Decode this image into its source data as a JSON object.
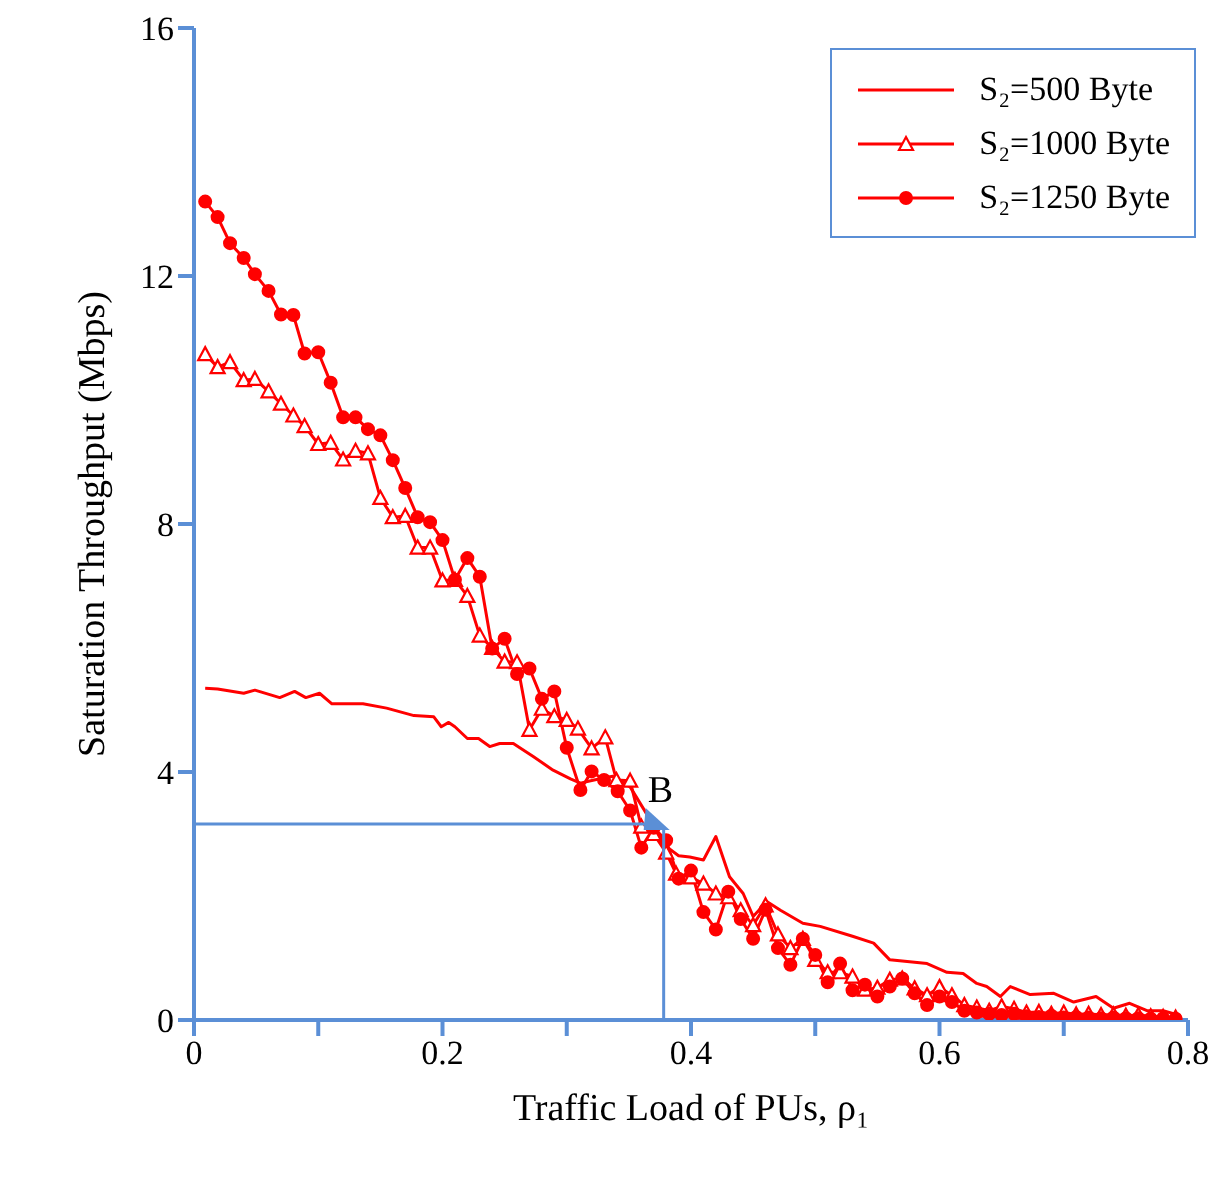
{
  "chart_data": {
    "type": "line",
    "xlabel": "Traffic Load of PUs, ρ₁",
    "ylabel": "Saturation Throughput (Mbps)",
    "xlim": [
      0,
      0.8
    ],
    "ylim": [
      0,
      16
    ],
    "xticks": [
      0,
      {
        "value": 0.1,
        "label": null
      },
      0.2,
      {
        "value": 0.3,
        "label": null
      },
      0.4,
      {
        "value": 0.5,
        "label": null
      },
      0.6,
      {
        "value": 0.7,
        "label": null
      },
      0.8
    ],
    "yticks": [
      0,
      4,
      8,
      12,
      16
    ],
    "legend": "top right",
    "annotations": [
      {
        "text": "B",
        "x": 0.378,
        "y": 3.16
      }
    ],
    "series": [
      {
        "name": "S₂=500 Byte",
        "color": "#ff0000",
        "marker": "none",
        "x": [
          0.009,
          0.019,
          0.04,
          0.049,
          0.069,
          0.081,
          0.09,
          0.101,
          0.111,
          0.136,
          0.155,
          0.177,
          0.193,
          0.199,
          0.205,
          0.21,
          0.22,
          0.229,
          0.238,
          0.246,
          0.257,
          0.273,
          0.289,
          0.303,
          0.311,
          0.322,
          0.337,
          0.351,
          0.365,
          0.38,
          0.39,
          0.399,
          0.41,
          0.42,
          0.431,
          0.442,
          0.45,
          0.461,
          0.472,
          0.49,
          0.504,
          0.53,
          0.547,
          0.56,
          0.59,
          0.606,
          0.619,
          0.63,
          0.638,
          0.649,
          0.657,
          0.673,
          0.692,
          0.708,
          0.726,
          0.74,
          0.753,
          0.767,
          0.78,
          0.794
        ],
        "values": [
          5.35,
          5.34,
          5.27,
          5.32,
          5.2,
          5.3,
          5.2,
          5.27,
          5.1,
          5.1,
          5.03,
          4.91,
          4.89,
          4.73,
          4.8,
          4.73,
          4.54,
          4.54,
          4.41,
          4.46,
          4.46,
          4.25,
          4.03,
          3.89,
          3.82,
          3.87,
          3.93,
          3.76,
          3.3,
          2.8,
          2.65,
          2.63,
          2.58,
          2.96,
          2.31,
          2.04,
          1.67,
          1.91,
          1.77,
          1.56,
          1.51,
          1.35,
          1.24,
          0.97,
          0.91,
          0.77,
          0.75,
          0.59,
          0.54,
          0.38,
          0.54,
          0.41,
          0.43,
          0.29,
          0.38,
          0.19,
          0.27,
          0.15,
          0.15,
          0.07
        ]
      },
      {
        "name": "S₂=1000 Byte",
        "color": "#ff0000",
        "marker": "triangle",
        "x": [
          0.009,
          0.019,
          0.029,
          0.04,
          0.049,
          0.06,
          0.07,
          0.08,
          0.089,
          0.1,
          0.11,
          0.12,
          0.13,
          0.14,
          0.15,
          0.16,
          0.17,
          0.18,
          0.19,
          0.2,
          0.21,
          0.22,
          0.23,
          0.24,
          0.25,
          0.26,
          0.27,
          0.28,
          0.29,
          0.3,
          0.309,
          0.32,
          0.331,
          0.34,
          0.351,
          0.36,
          0.37,
          0.38,
          0.388,
          0.4,
          0.41,
          0.42,
          0.43,
          0.44,
          0.45,
          0.46,
          0.47,
          0.48,
          0.49,
          0.5,
          0.51,
          0.52,
          0.53,
          0.54,
          0.55,
          0.56,
          0.57,
          0.58,
          0.59,
          0.6,
          0.61,
          0.62,
          0.63,
          0.64,
          0.65,
          0.66,
          0.67,
          0.68,
          0.69,
          0.7,
          0.71,
          0.72,
          0.73,
          0.74,
          0.75,
          0.76,
          0.77,
          0.78,
          0.79
        ],
        "values": [
          10.74,
          10.53,
          10.61,
          10.32,
          10.34,
          10.14,
          9.94,
          9.75,
          9.58,
          9.29,
          9.31,
          9.04,
          9.18,
          9.14,
          8.42,
          8.11,
          8.13,
          7.62,
          7.62,
          7.09,
          7.1,
          6.84,
          6.2,
          6.0,
          5.78,
          5.77,
          4.68,
          5.02,
          4.9,
          4.84,
          4.7,
          4.38,
          4.56,
          3.87,
          3.86,
          3.12,
          3.0,
          2.7,
          2.36,
          2.3,
          2.2,
          2.04,
          1.98,
          1.77,
          1.53,
          1.85,
          1.38,
          1.16,
          1.31,
          0.97,
          0.77,
          0.77,
          0.7,
          0.49,
          0.52,
          0.65,
          0.67,
          0.51,
          0.4,
          0.53,
          0.4,
          0.24,
          0.2,
          0.15,
          0.22,
          0.18,
          0.12,
          0.13,
          0.1,
          0.12,
          0.09,
          0.1,
          0.08,
          0.09,
          0.07,
          0.08,
          0.06,
          0.05,
          0.04
        ]
      },
      {
        "name": "S₂=1250 Byte",
        "color": "#ff0000",
        "marker": "circle",
        "x": [
          0.009,
          0.019,
          0.029,
          0.04,
          0.049,
          0.06,
          0.07,
          0.08,
          0.089,
          0.1,
          0.11,
          0.12,
          0.13,
          0.14,
          0.15,
          0.16,
          0.17,
          0.18,
          0.19,
          0.2,
          0.21,
          0.22,
          0.23,
          0.24,
          0.25,
          0.26,
          0.27,
          0.28,
          0.29,
          0.3,
          0.311,
          0.32,
          0.33,
          0.341,
          0.351,
          0.36,
          0.37,
          0.38,
          0.39,
          0.4,
          0.41,
          0.42,
          0.43,
          0.44,
          0.45,
          0.46,
          0.47,
          0.48,
          0.49,
          0.5,
          0.51,
          0.52,
          0.53,
          0.54,
          0.55,
          0.56,
          0.57,
          0.58,
          0.59,
          0.6,
          0.61,
          0.62,
          0.63,
          0.64,
          0.65,
          0.66,
          0.67,
          0.68,
          0.69,
          0.7,
          0.71,
          0.72,
          0.73,
          0.74,
          0.75,
          0.76,
          0.77,
          0.78,
          0.79
        ],
        "values": [
          13.2,
          12.95,
          12.53,
          12.29,
          12.03,
          11.76,
          11.38,
          11.37,
          10.75,
          10.77,
          10.28,
          9.72,
          9.72,
          9.53,
          9.43,
          9.03,
          8.58,
          8.11,
          8.03,
          7.74,
          7.1,
          7.45,
          7.15,
          5.99,
          6.15,
          5.58,
          5.67,
          5.18,
          5.3,
          4.39,
          3.71,
          4.01,
          3.87,
          3.69,
          3.38,
          2.78,
          3.1,
          2.9,
          2.28,
          2.41,
          1.74,
          1.46,
          2.07,
          1.63,
          1.31,
          1.78,
          1.16,
          0.89,
          1.31,
          1.05,
          0.61,
          0.91,
          0.48,
          0.57,
          0.38,
          0.54,
          0.67,
          0.43,
          0.24,
          0.38,
          0.29,
          0.15,
          0.12,
          0.1,
          0.08,
          0.1,
          0.06,
          0.05,
          0.07,
          0.04,
          0.05,
          0.04,
          0.03,
          0.04,
          0.03,
          0.03,
          0.02,
          0.03,
          0.02
        ]
      }
    ]
  }
}
